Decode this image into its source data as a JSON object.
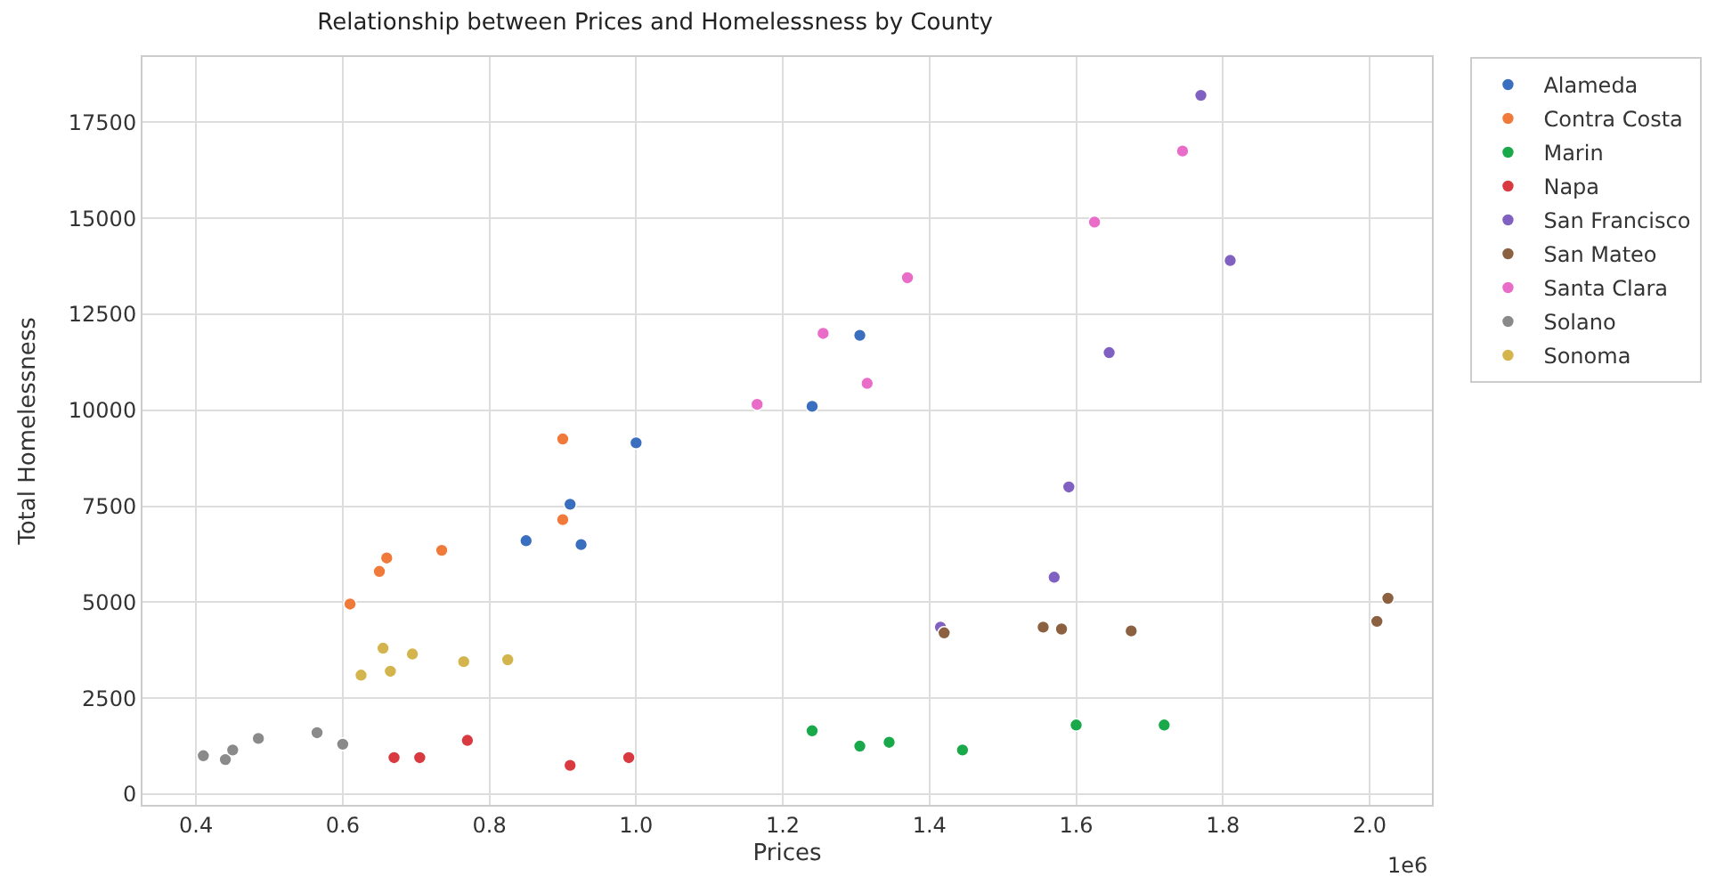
{
  "chart_data": {
    "type": "scatter",
    "title": "Relationship between Prices and Homelessness by County",
    "xlabel": "Prices",
    "ylabel": "Total Homelessness",
    "annotations": [
      "1e6"
    ],
    "xlim": [
      0.327,
      2.085
    ],
    "ylim": [
      -280,
      19200
    ],
    "xticks": [
      0.4,
      0.6,
      0.8,
      {
        "value": 1,
        "label": "1.0"
      },
      1.2,
      1.4,
      1.6,
      1.8,
      {
        "value": 2,
        "label": "2.0"
      }
    ],
    "yticks": [
      0,
      2500,
      5000,
      7500,
      10000,
      12500,
      15000,
      17500
    ],
    "grid": true,
    "legend": "top right",
    "marker": "circle",
    "series": [
      {
        "name": "Alameda",
        "color": "#3a6fbf",
        "x": [
          0.85,
          0.91,
          0.925,
          1.0,
          1.24,
          1.305
        ],
        "values": [
          6600,
          7550,
          6500,
          9150,
          10100,
          11950
        ]
      },
      {
        "name": "Contra Costa",
        "color": "#f07a3a",
        "x": [
          0.61,
          0.65,
          0.66,
          0.735,
          0.9,
          0.9
        ],
        "values": [
          4950,
          5800,
          6150,
          6350,
          7150,
          9250
        ]
      },
      {
        "name": "Marin",
        "color": "#1aa94a",
        "x": [
          1.24,
          1.305,
          1.345,
          1.445,
          1.6,
          1.72
        ],
        "values": [
          1650,
          1250,
          1350,
          1150,
          1800,
          1800
        ]
      },
      {
        "name": "Napa",
        "color": "#d83a40",
        "x": [
          0.67,
          0.705,
          0.77,
          0.91,
          0.99
        ],
        "values": [
          950,
          950,
          1400,
          750,
          950
        ]
      },
      {
        "name": "San Francisco",
        "color": "#8060c0",
        "x": [
          1.415,
          1.57,
          1.59,
          1.645,
          1.77,
          1.81
        ],
        "values": [
          4350,
          5650,
          8000,
          11500,
          18200,
          13900
        ]
      },
      {
        "name": "San Mateo",
        "color": "#8c6142",
        "x": [
          1.42,
          1.555,
          1.58,
          1.675,
          2.01,
          2.025
        ],
        "values": [
          4200,
          4350,
          4300,
          4250,
          4500,
          5100
        ]
      },
      {
        "name": "Santa Clara",
        "color": "#e86cc8",
        "x": [
          1.165,
          1.255,
          1.315,
          1.37,
          1.625,
          1.745
        ],
        "values": [
          10150,
          12000,
          10700,
          13450,
          14900,
          16750
        ]
      },
      {
        "name": "Solano",
        "color": "#8a8a8a",
        "x": [
          0.41,
          0.44,
          0.45,
          0.485,
          0.565,
          0.6
        ],
        "values": [
          1000,
          900,
          1150,
          1450,
          1600,
          1300
        ]
      },
      {
        "name": "Sonoma",
        "color": "#d4b44c",
        "x": [
          0.625,
          0.655,
          0.665,
          0.695,
          0.765,
          0.825
        ],
        "values": [
          3100,
          3800,
          3200,
          3650,
          3450,
          3500
        ]
      }
    ]
  }
}
